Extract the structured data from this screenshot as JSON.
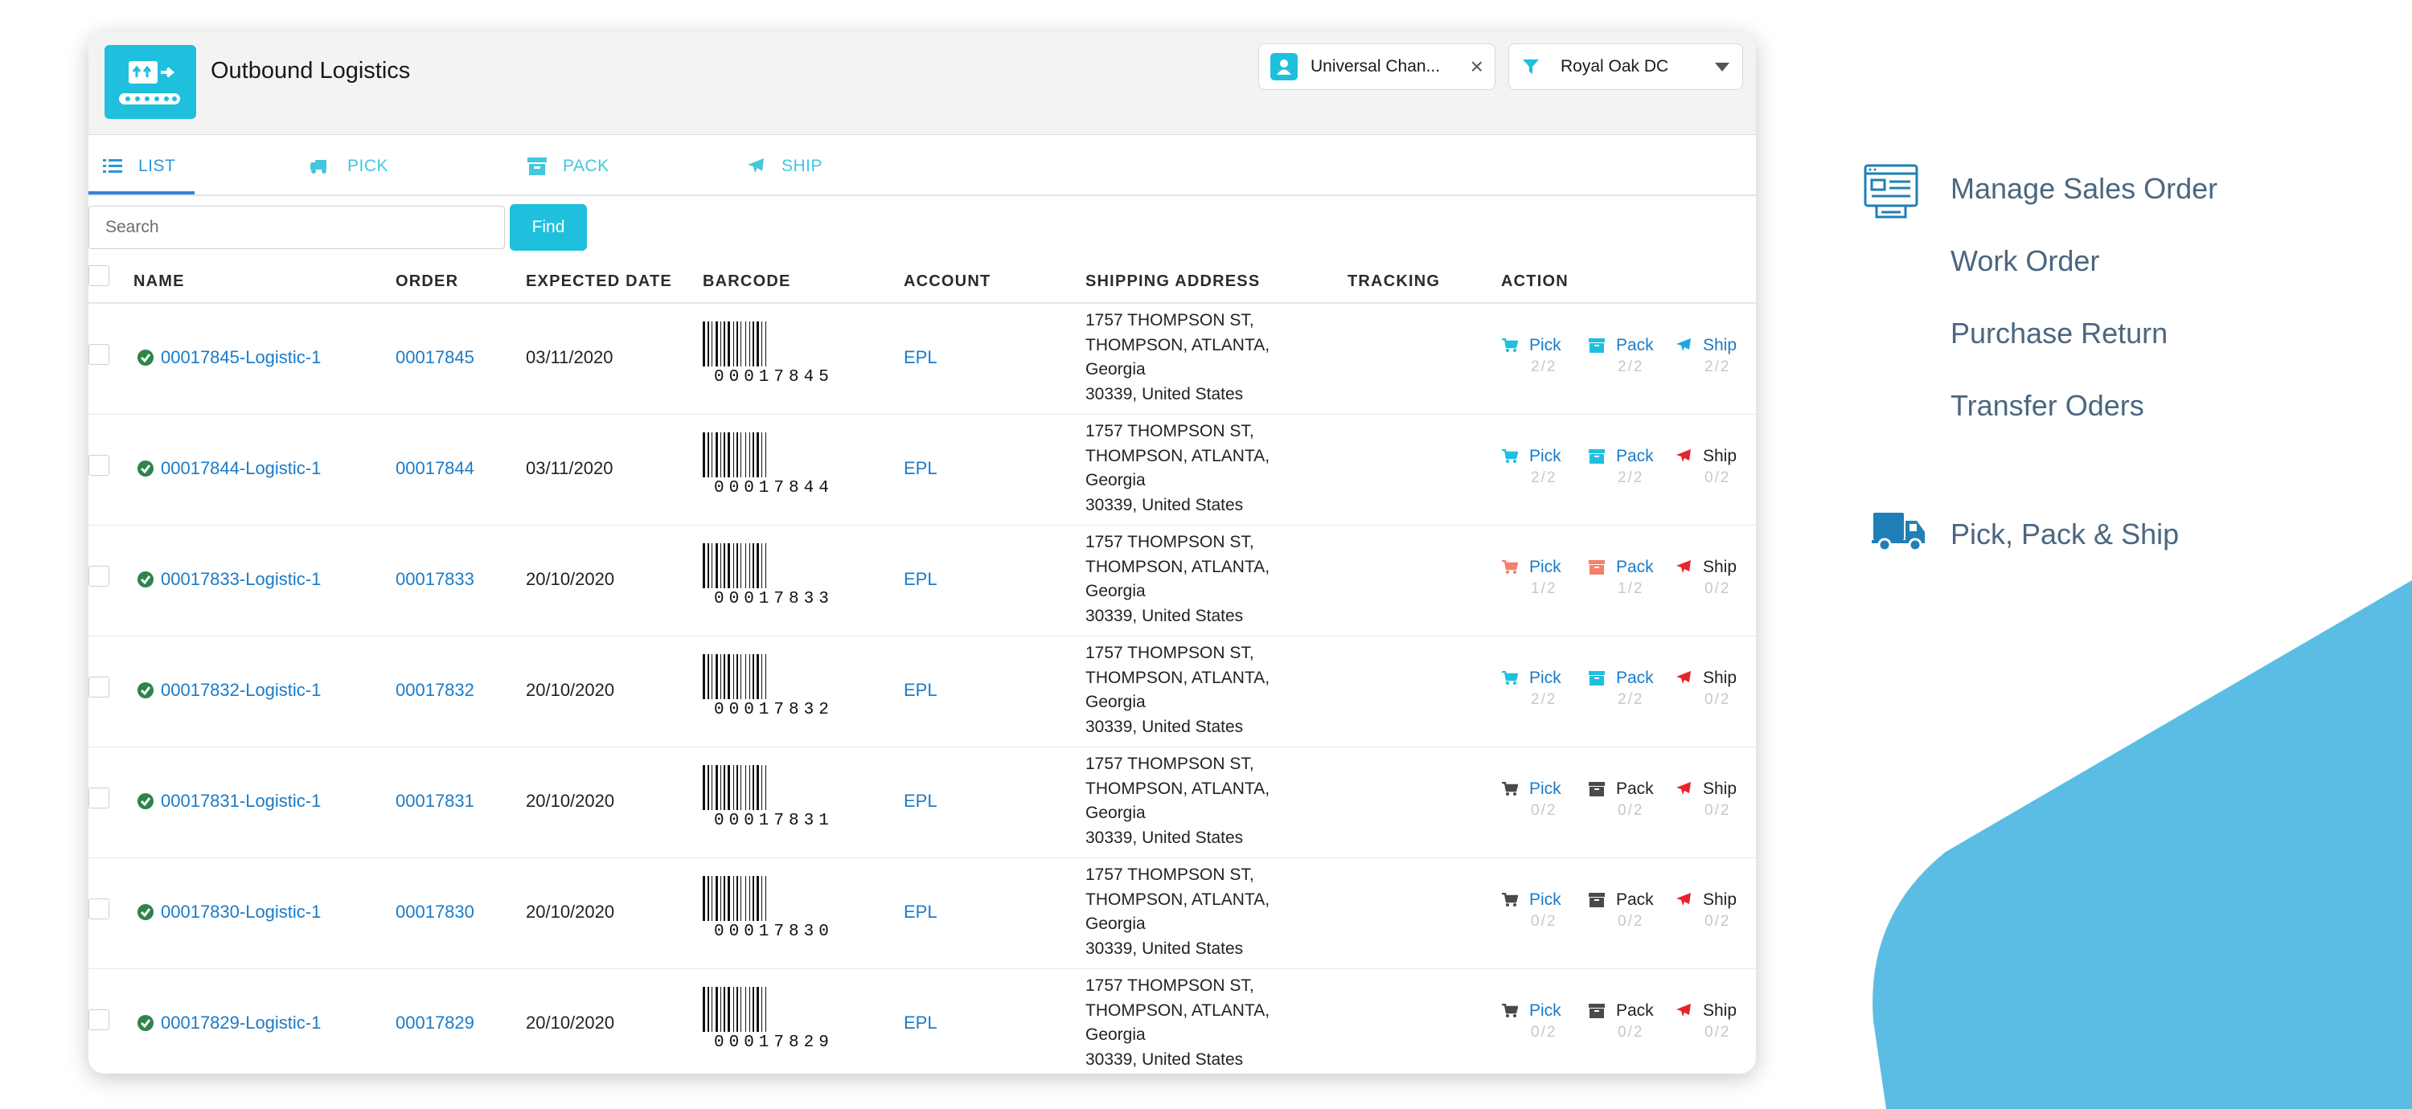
{
  "app": {
    "title": "Outbound Logistics",
    "owner_chip": "Universal Chan...",
    "warehouse": "Royal Oak DC"
  },
  "tabs": [
    {
      "label": "LIST",
      "icon": "list-icon",
      "active": true
    },
    {
      "label": "PICK",
      "icon": "truck-icon",
      "active": false
    },
    {
      "label": "PACK",
      "icon": "box-icon",
      "active": false
    },
    {
      "label": "SHIP",
      "icon": "plane-icon",
      "active": false
    }
  ],
  "search": {
    "placeholder": "Search",
    "button": "Find"
  },
  "columns": [
    "NAME",
    "ORDER",
    "EXPECTED DATE",
    "BARCODE",
    "ACCOUNT",
    "SHIPPING ADDRESS",
    "TRACKING",
    "ACTION"
  ],
  "colors": {
    "accent": "#1ec0dd",
    "link": "#1a7bc8",
    "done": "#1ec0dd",
    "partial": "#f4806a",
    "none": "#4a4a4a",
    "ship_pending": "#e8232d",
    "ship_done": "#1ea7dd",
    "check": "#2e844a"
  },
  "rows": [
    {
      "name": "00017845-Logistic-1",
      "order": "00017845",
      "date": "03/11/2020",
      "barcode": "00017845",
      "account": "EPL",
      "address": [
        "1757 THOMPSON ST,",
        "THOMPSON, ATLANTA,",
        "Georgia",
        "30339, United States"
      ],
      "tracking": "",
      "pick": {
        "label": "Pick",
        "count": "2/2",
        "state": "done"
      },
      "pack": {
        "label": "Pack",
        "count": "2/2",
        "state": "done"
      },
      "ship": {
        "label": "Ship",
        "count": "2/2",
        "state": "done"
      }
    },
    {
      "name": "00017844-Logistic-1",
      "order": "00017844",
      "date": "03/11/2020",
      "barcode": "00017844",
      "account": "EPL",
      "address": [
        "1757 THOMPSON ST,",
        "THOMPSON, ATLANTA,",
        "Georgia",
        "30339, United States"
      ],
      "tracking": "",
      "pick": {
        "label": "Pick",
        "count": "2/2",
        "state": "done"
      },
      "pack": {
        "label": "Pack",
        "count": "2/2",
        "state": "done"
      },
      "ship": {
        "label": "Ship",
        "count": "0/2",
        "state": "pending"
      }
    },
    {
      "name": "00017833-Logistic-1",
      "order": "00017833",
      "date": "20/10/2020",
      "barcode": "00017833",
      "account": "EPL",
      "address": [
        "1757 THOMPSON ST,",
        "THOMPSON, ATLANTA,",
        "Georgia",
        "30339, United States"
      ],
      "tracking": "",
      "pick": {
        "label": "Pick",
        "count": "1/2",
        "state": "partial"
      },
      "pack": {
        "label": "Pack",
        "count": "1/2",
        "state": "partial"
      },
      "ship": {
        "label": "Ship",
        "count": "0/2",
        "state": "pending"
      }
    },
    {
      "name": "00017832-Logistic-1",
      "order": "00017832",
      "date": "20/10/2020",
      "barcode": "00017832",
      "account": "EPL",
      "address": [
        "1757 THOMPSON ST,",
        "THOMPSON, ATLANTA,",
        "Georgia",
        "30339, United States"
      ],
      "tracking": "",
      "pick": {
        "label": "Pick",
        "count": "2/2",
        "state": "done"
      },
      "pack": {
        "label": "Pack",
        "count": "2/2",
        "state": "done"
      },
      "ship": {
        "label": "Ship",
        "count": "0/2",
        "state": "pending"
      }
    },
    {
      "name": "00017831-Logistic-1",
      "order": "00017831",
      "date": "20/10/2020",
      "barcode": "00017831",
      "account": "EPL",
      "address": [
        "1757 THOMPSON ST,",
        "THOMPSON, ATLANTA,",
        "Georgia",
        "30339, United States"
      ],
      "tracking": "",
      "pick": {
        "label": "Pick",
        "count": "0/2",
        "state": "none"
      },
      "pack": {
        "label": "Pack",
        "count": "0/2",
        "state": "none"
      },
      "ship": {
        "label": "Ship",
        "count": "0/2",
        "state": "pending"
      }
    },
    {
      "name": "00017830-Logistic-1",
      "order": "00017830",
      "date": "20/10/2020",
      "barcode": "00017830",
      "account": "EPL",
      "address": [
        "1757 THOMPSON ST,",
        "THOMPSON, ATLANTA,",
        "Georgia",
        "30339, United States"
      ],
      "tracking": "",
      "pick": {
        "label": "Pick",
        "count": "0/2",
        "state": "none"
      },
      "pack": {
        "label": "Pack",
        "count": "0/2",
        "state": "none"
      },
      "ship": {
        "label": "Ship",
        "count": "0/2",
        "state": "pending"
      }
    },
    {
      "name": "00017829-Logistic-1",
      "order": "00017829",
      "date": "20/10/2020",
      "barcode": "00017829",
      "account": "EPL",
      "address": [
        "1757 THOMPSON ST,",
        "THOMPSON, ATLANTA,",
        "Georgia",
        "30339, United States"
      ],
      "tracking": "",
      "pick": {
        "label": "Pick",
        "count": "0/2",
        "state": "none"
      },
      "pack": {
        "label": "Pack",
        "count": "0/2",
        "state": "none"
      },
      "ship": {
        "label": "Ship",
        "count": "0/2",
        "state": "pending"
      }
    }
  ],
  "side_menu": {
    "items": [
      {
        "label": "Manage Sales Order",
        "icon": "sales-order-icon"
      },
      {
        "label": "Work Order",
        "icon": ""
      },
      {
        "label": "Purchase Return",
        "icon": ""
      },
      {
        "label": "Transfer Oders",
        "icon": ""
      },
      {
        "label": "Pick, Pack & Ship",
        "icon": "delivery-truck-icon"
      }
    ]
  }
}
